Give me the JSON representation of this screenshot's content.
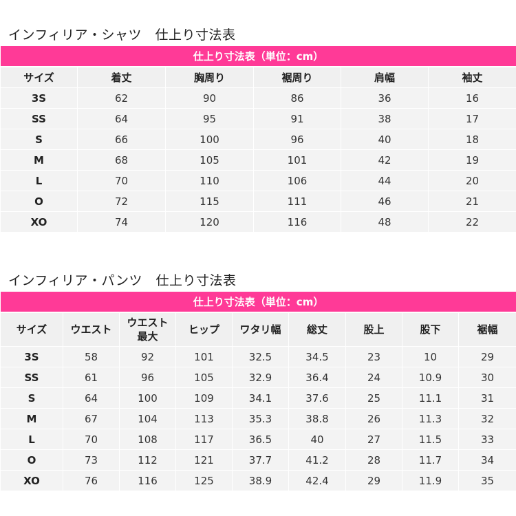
{
  "shirt": {
    "title": "インフィリア・シャツ　仕上り寸法表",
    "banner": "仕上り寸法表（単位：cm）",
    "headers": [
      "サイズ",
      "着丈",
      "胸周り",
      "裾周り",
      "肩幅",
      "袖丈"
    ],
    "rows": [
      [
        "3S",
        "62",
        "90",
        "86",
        "36",
        "16"
      ],
      [
        "SS",
        "64",
        "95",
        "91",
        "38",
        "17"
      ],
      [
        "S",
        "66",
        "100",
        "96",
        "40",
        "18"
      ],
      [
        "M",
        "68",
        "105",
        "101",
        "42",
        "19"
      ],
      [
        "L",
        "70",
        "110",
        "106",
        "44",
        "20"
      ],
      [
        "O",
        "72",
        "115",
        "111",
        "46",
        "21"
      ],
      [
        "XO",
        "74",
        "120",
        "116",
        "48",
        "22"
      ]
    ]
  },
  "pants": {
    "title": "インフィリア・パンツ　仕上り寸法表",
    "banner": "仕上り寸法表（単位：cm）",
    "headers": [
      "サイズ",
      "ウエスト",
      "ウエスト\n最大",
      "ヒップ",
      "ワタリ幅",
      "総丈",
      "股上",
      "股下",
      "裾幅"
    ],
    "rows": [
      [
        "3S",
        "58",
        "92",
        "101",
        "32.5",
        "34.5",
        "23",
        "10",
        "29"
      ],
      [
        "SS",
        "61",
        "96",
        "105",
        "32.9",
        "36.4",
        "24",
        "10.9",
        "30"
      ],
      [
        "S",
        "64",
        "100",
        "109",
        "34.1",
        "37.6",
        "25",
        "11.1",
        "31"
      ],
      [
        "M",
        "67",
        "104",
        "113",
        "35.3",
        "38.8",
        "26",
        "11.3",
        "32"
      ],
      [
        "L",
        "70",
        "108",
        "117",
        "36.5",
        "40",
        "27",
        "11.5",
        "33"
      ],
      [
        "O",
        "73",
        "112",
        "121",
        "37.7",
        "41.2",
        "28",
        "11.7",
        "34"
      ],
      [
        "XO",
        "76",
        "116",
        "125",
        "38.9",
        "42.4",
        "29",
        "11.9",
        "35"
      ]
    ]
  },
  "colors": {
    "banner": "#ff3a97",
    "cell_background": "#f3f3f3"
  }
}
